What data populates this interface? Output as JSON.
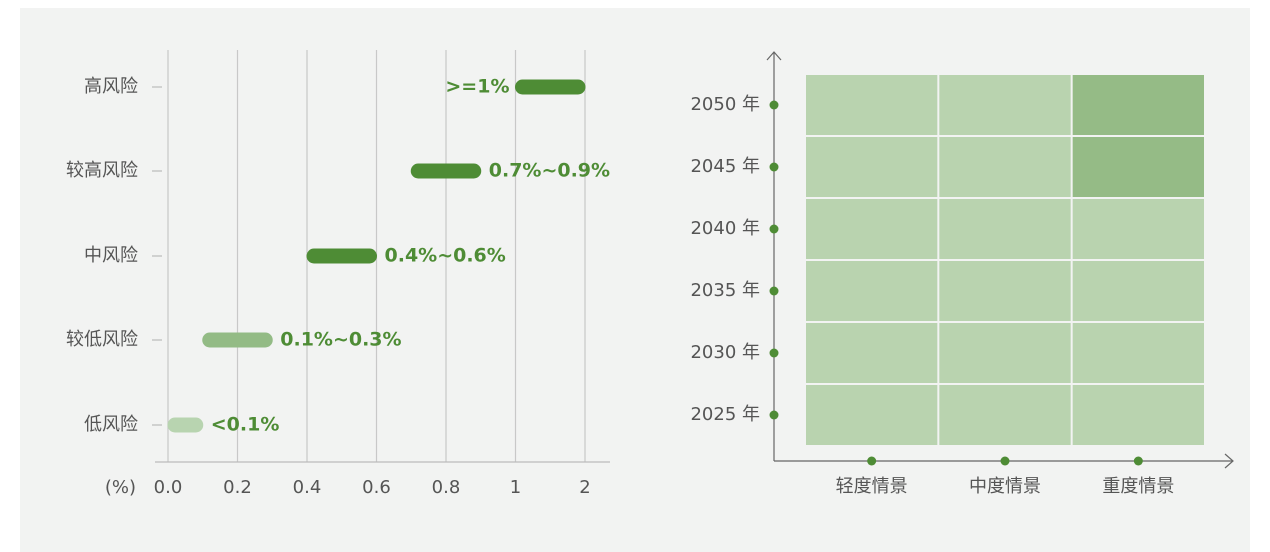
{
  "chart_data": [
    {
      "type": "range_bar",
      "categories": [
        "高风险",
        "较高风险",
        "中风险",
        "较低风险",
        "低风险"
      ],
      "low": [
        1,
        0.7,
        0.4,
        0.1,
        0
      ],
      "high": [
        2,
        0.9,
        0.6,
        0.3,
        0.1
      ],
      "value_labels": [
        ">=1%",
        "0.7%~0.9%",
        "0.4%~0.6%",
        "0.1%~0.3%",
        "<0.1%"
      ],
      "colors": [
        "#4e8c35",
        "#4e8c35",
        "#4e8c35",
        "#93bb85",
        "#b8d4b0"
      ],
      "label_color": "#4e8c35",
      "x_label": "(%)",
      "xlim": [
        0,
        2
      ],
      "xticks": [
        {
          "value": 0,
          "label": "0.0"
        },
        0.2,
        0.4,
        0.6,
        0.8,
        1,
        2
      ],
      "grid": true
    },
    {
      "type": "heatmap",
      "rows": [
        "2050 年",
        "2045 年",
        "2040 年",
        "2035 年",
        "2030 年",
        "2025 年"
      ],
      "columns": [
        "轻度情景",
        "中度情景",
        "重度情景"
      ],
      "cell_colors": [
        [
          "#b9d3af",
          "#b9d3af",
          "#95bb86"
        ],
        [
          "#b9d3af",
          "#b9d3af",
          "#95bb86"
        ],
        [
          "#b9d3af",
          "#b9d3af",
          "#b9d3af"
        ],
        [
          "#b9d3af",
          "#b9d3af",
          "#b9d3af"
        ],
        [
          "#b9d3af",
          "#b9d3af",
          "#b9d3af"
        ],
        [
          "#b9d3af",
          "#b9d3af",
          "#b9d3af"
        ]
      ],
      "marker_color": "#4e8c35"
    }
  ]
}
